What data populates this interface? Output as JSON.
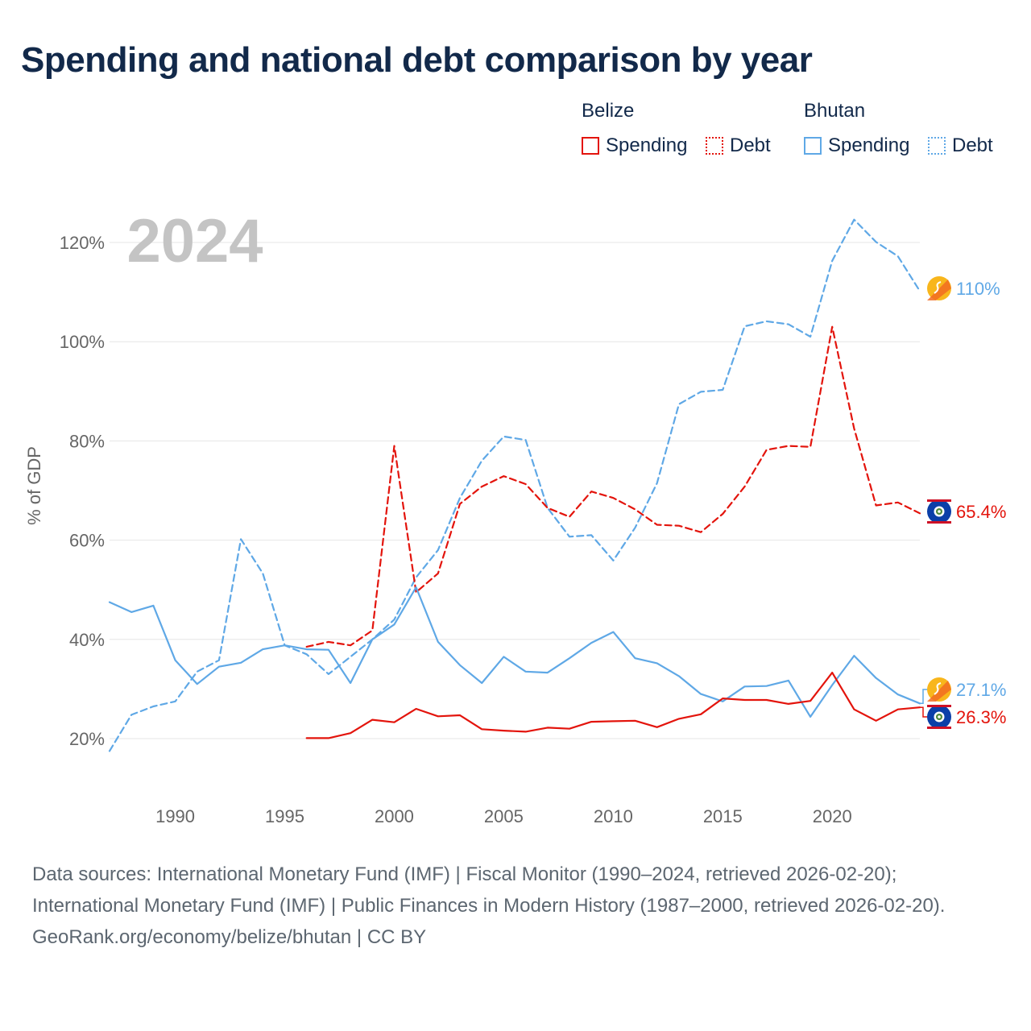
{
  "title": "Spending and national debt comparison by year",
  "legend": {
    "groups": [
      {
        "name": "Belize",
        "color": "#e3140c",
        "items": [
          {
            "label": "Spending",
            "style": "solid"
          },
          {
            "label": "Debt",
            "style": "dotted"
          }
        ]
      },
      {
        "name": "Bhutan",
        "color": "#5fa8e6",
        "items": [
          {
            "label": "Spending",
            "style": "solid"
          },
          {
            "label": "Debt",
            "style": "dotted"
          }
        ]
      }
    ]
  },
  "chart_data": {
    "type": "line",
    "year_label": "2024",
    "ylabel": "% of GDP",
    "xlim": [
      1987,
      2024
    ],
    "ylim": [
      10,
      130
    ],
    "xticks": [
      1990,
      1995,
      2000,
      2005,
      2010,
      2015,
      2020
    ],
    "yticks": [
      20,
      40,
      60,
      80,
      100,
      120
    ],
    "ytick_labels": [
      "20%",
      "40%",
      "60%",
      "80%",
      "100%",
      "120%"
    ],
    "grid": true,
    "series": [
      {
        "name": "Bhutan Debt",
        "country": "Bhutan",
        "kind": "debt",
        "color": "#5fa8e6",
        "dash": "dashed",
        "x": [
          1987,
          1988,
          1989,
          1990,
          1991,
          1992,
          1993,
          1994,
          1995,
          1996,
          1997,
          1998,
          1999,
          2000,
          2001,
          2002,
          2003,
          2004,
          2005,
          2006,
          2007,
          2008,
          2009,
          2010,
          2011,
          2012,
          2013,
          2014,
          2015,
          2016,
          2017,
          2018,
          2019,
          2020,
          2021,
          2022,
          2023,
          2024
        ],
        "y": [
          17.5,
          24.8,
          26.5,
          27.5,
          33.5,
          35.8,
          60.2,
          53.3,
          38.8,
          37,
          33,
          36.5,
          40,
          44,
          52.5,
          58,
          68.5,
          76,
          80.9,
          80.2,
          66.5,
          60.7,
          61,
          55.9,
          62.5,
          71.5,
          87.4,
          89.9,
          90.3,
          103.1,
          104.1,
          103.5,
          101,
          116.3,
          124.6,
          120.1,
          117.2,
          110.2
        ]
      },
      {
        "name": "Belize Debt",
        "country": "Belize",
        "kind": "debt",
        "color": "#e3140c",
        "dash": "dashed",
        "x": [
          1996,
          1997,
          1998,
          1999,
          2000,
          2001,
          2002,
          2003,
          2004,
          2005,
          2006,
          2007,
          2008,
          2009,
          2010,
          2011,
          2012,
          2013,
          2014,
          2015,
          2016,
          2017,
          2018,
          2019,
          2020,
          2021,
          2022,
          2023,
          2024
        ],
        "y": [
          38.5,
          39.5,
          38.8,
          41.8,
          79,
          49.5,
          53.3,
          67.3,
          70.8,
          72.9,
          71.3,
          66.5,
          64.7,
          69.8,
          68.5,
          66.2,
          63.1,
          62.9,
          61.6,
          65.3,
          70.8,
          78.2,
          79,
          78.8,
          103,
          82.5,
          67,
          67.6,
          65.4
        ]
      },
      {
        "name": "Bhutan Spending",
        "country": "Bhutan",
        "kind": "spending",
        "color": "#5fa8e6",
        "dash": "solid",
        "x": [
          1987,
          1988,
          1989,
          1990,
          1991,
          1992,
          1993,
          1994,
          1995,
          1996,
          1997,
          1998,
          1999,
          2000,
          2001,
          2002,
          2003,
          2004,
          2005,
          2006,
          2007,
          2008,
          2009,
          2010,
          2011,
          2012,
          2013,
          2014,
          2015,
          2016,
          2017,
          2018,
          2019,
          2020,
          2021,
          2022,
          2023,
          2024
        ],
        "y": [
          47.5,
          45.5,
          46.8,
          35.8,
          31,
          34.5,
          35.3,
          38,
          38.8,
          38,
          37.9,
          31.2,
          40,
          43,
          50.5,
          39.5,
          34.8,
          31.2,
          36.5,
          33.5,
          33.3,
          36.2,
          39.3,
          41.5,
          36.2,
          35.2,
          32.6,
          29,
          27.5,
          30.5,
          30.6,
          31.7,
          24.4,
          30.8,
          36.7,
          32.2,
          28.9,
          27.1
        ]
      },
      {
        "name": "Belize Spending",
        "country": "Belize",
        "kind": "spending",
        "color": "#e3140c",
        "dash": "solid",
        "x": [
          1996,
          1997,
          1998,
          1999,
          2000,
          2001,
          2002,
          2003,
          2004,
          2005,
          2006,
          2007,
          2008,
          2009,
          2010,
          2011,
          2012,
          2013,
          2014,
          2015,
          2016,
          2017,
          2018,
          2019,
          2020,
          2021,
          2022,
          2023,
          2024
        ],
        "y": [
          20.1,
          20.1,
          21.1,
          23.8,
          23.3,
          26,
          24.5,
          24.7,
          21.9,
          21.6,
          21.4,
          22.2,
          22,
          23.4,
          23.5,
          23.6,
          22.3,
          24,
          24.9,
          28.1,
          27.8,
          27.8,
          27,
          27.6,
          33.3,
          25.9,
          23.6,
          25.9,
          26.3
        ]
      }
    ],
    "end_labels": [
      {
        "text": "110%",
        "color": "#5fa8e6",
        "country": "Bhutan",
        "value": 110.2
      },
      {
        "text": "65.4%",
        "color": "#e3140c",
        "country": "Belize",
        "value": 65.4
      },
      {
        "text": "27.1%",
        "color": "#5fa8e6",
        "country": "Bhutan",
        "value": 27.1
      },
      {
        "text": "26.3%",
        "color": "#e3140c",
        "country": "Belize",
        "value": 26.3
      }
    ]
  },
  "footer": {
    "sources": "Data sources: International Monetary Fund (IMF) | Fiscal Monitor (1990–2024, retrieved 2026-02-20); International Monetary Fund (IMF) | Public Finances in Modern History (1987–2000, retrieved 2026-02-20).",
    "credit": "GeoRank.org/economy/belize/bhutan | CC BY"
  }
}
